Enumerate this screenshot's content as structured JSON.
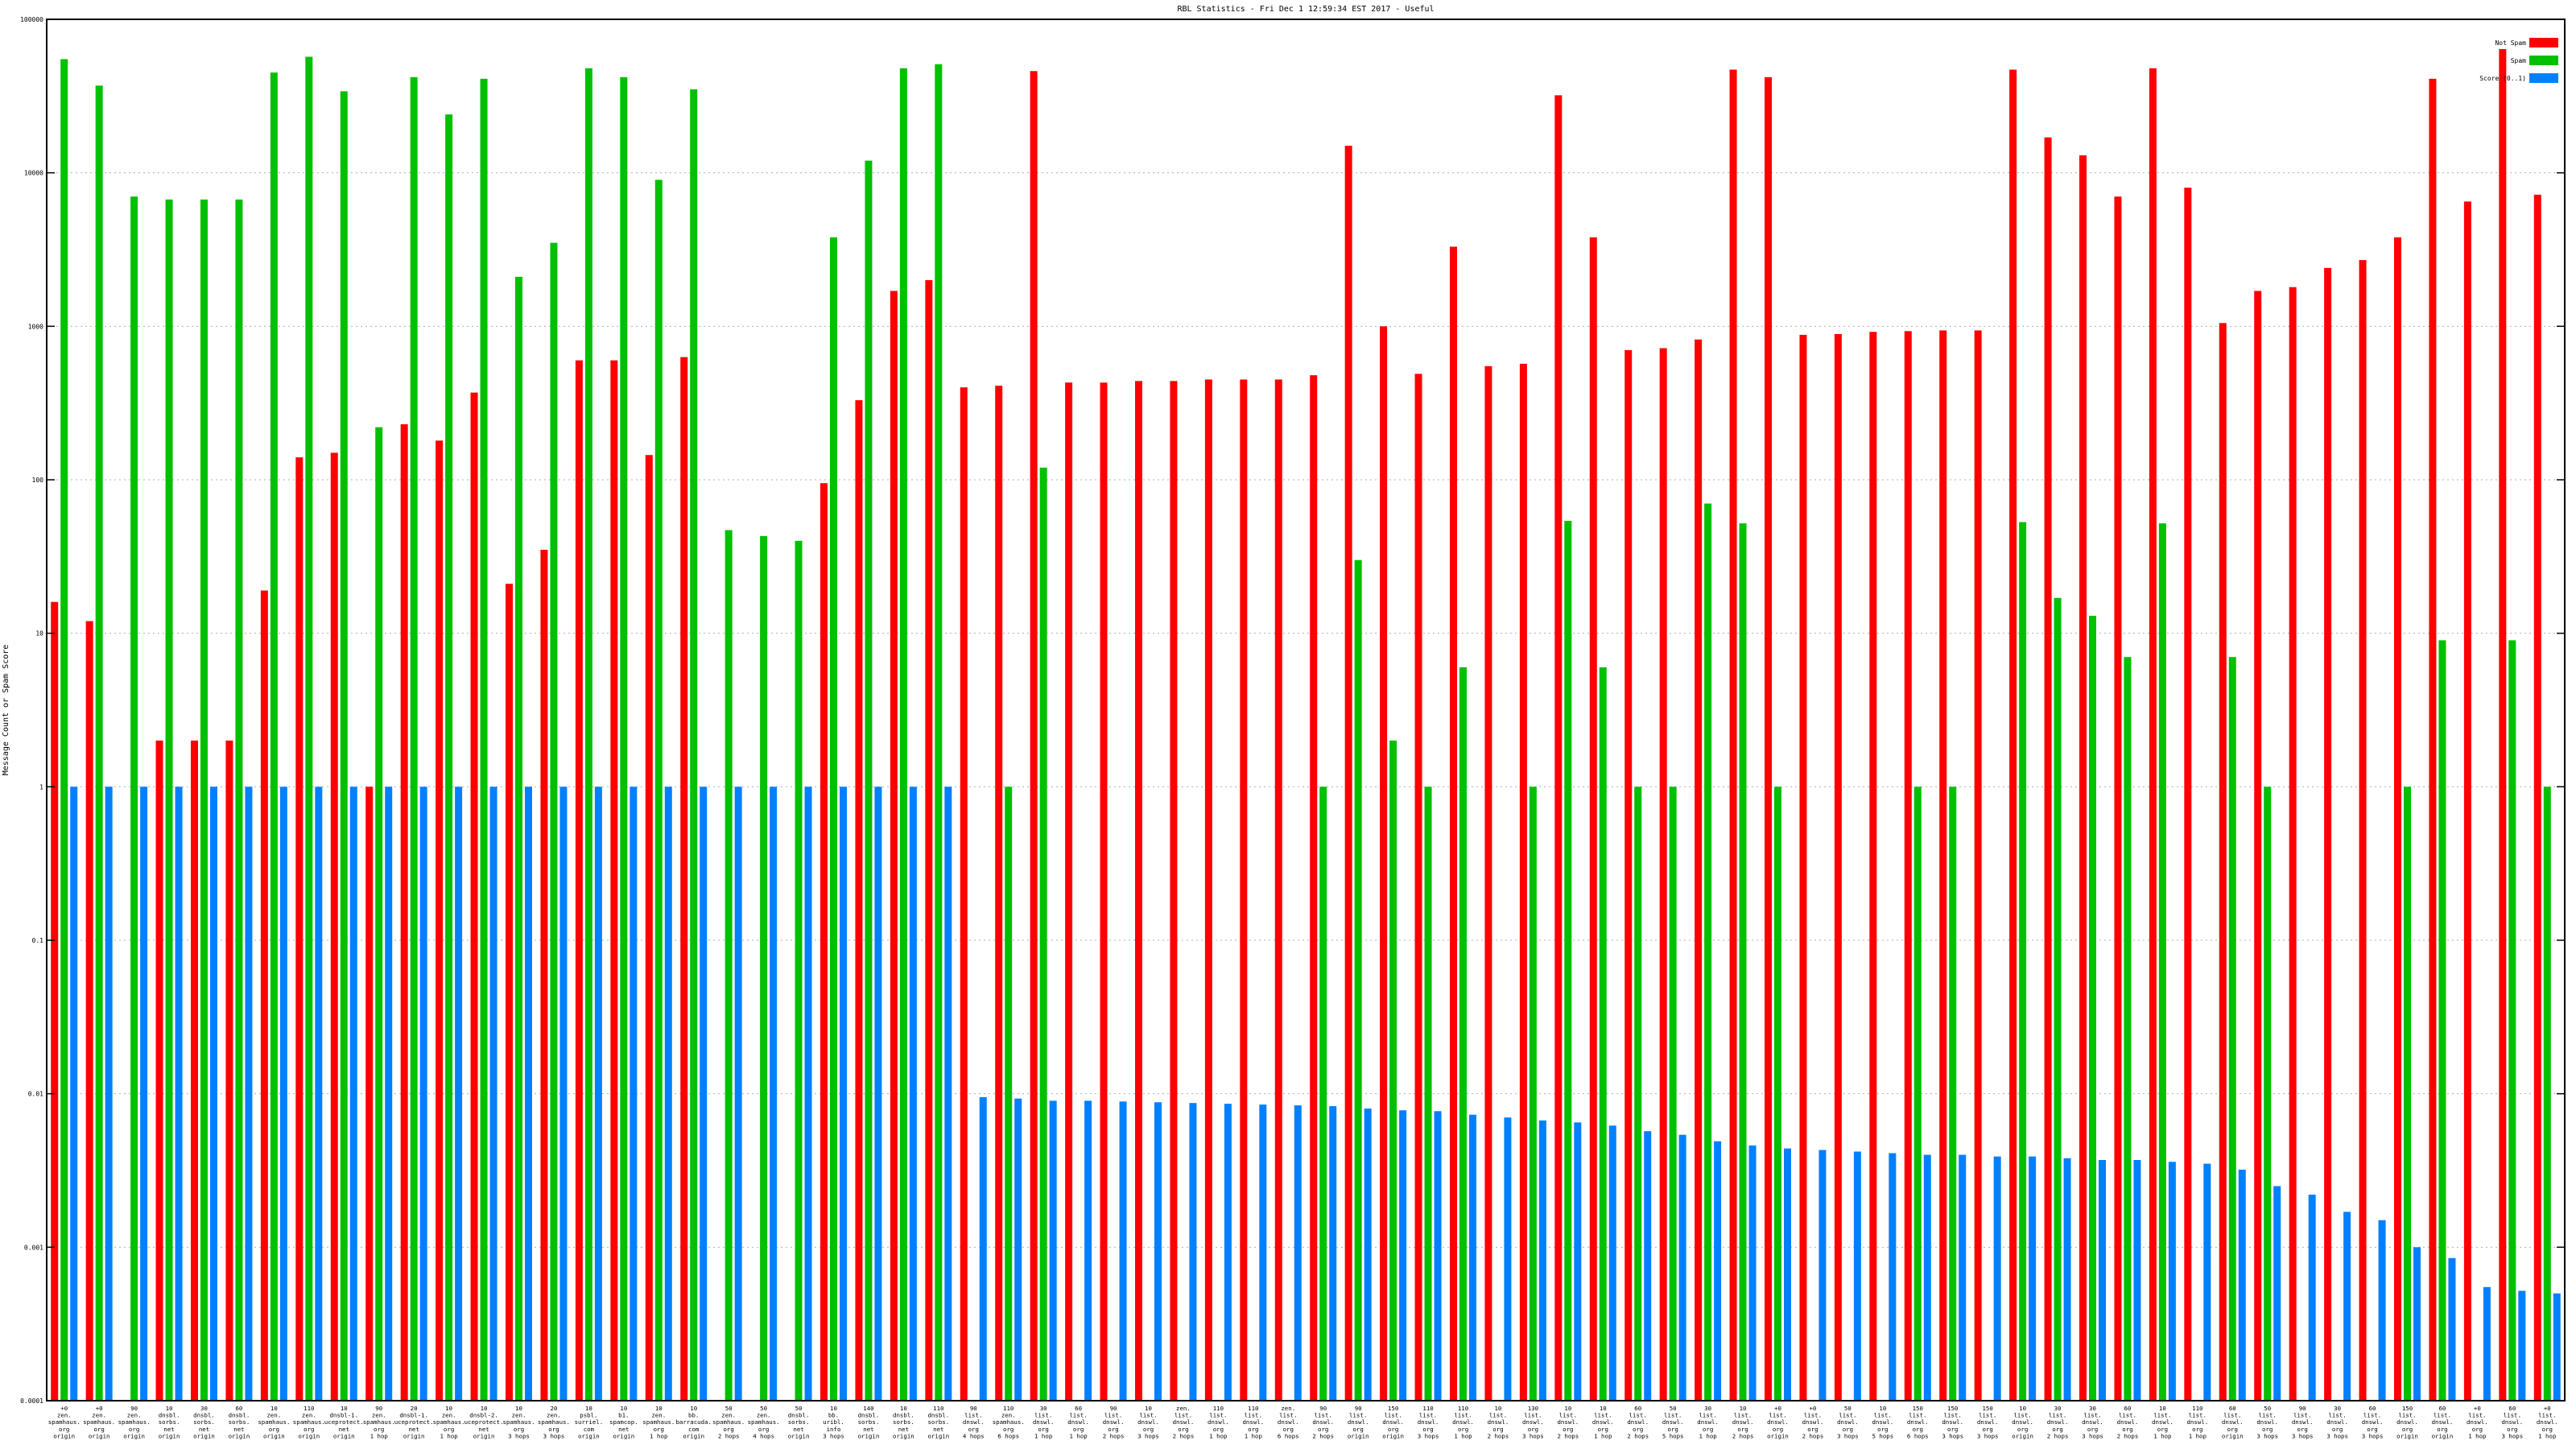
{
  "chart_data": {
    "type": "bar",
    "title": "RBL Statistics - Fri Dec  1 12:59:34 EST 2017 - Useful",
    "ylabel": "Message Count or Spam Score",
    "xlabel": "",
    "yscale": "log",
    "ylim": [
      0.0001,
      100000
    ],
    "ytick_labels": [
      "0.0001",
      "0.001",
      "0.01",
      "0.1",
      "1",
      "10",
      "100",
      "1000",
      "10000",
      "100000"
    ],
    "grid": true,
    "legend_position": "top-right",
    "colors": {
      "not_spam": "#ff0000",
      "spam": "#00c000",
      "score": "#0080ff"
    },
    "series": [
      {
        "name": "Not Spam",
        "color": "#ff0000",
        "values": [
          16,
          12,
          null,
          2,
          2,
          2,
          19,
          140,
          150,
          1,
          230,
          180,
          370,
          21,
          35,
          600,
          600,
          145,
          630,
          null,
          null,
          null,
          95,
          330,
          1700,
          2000,
          400,
          410,
          46000,
          430,
          430,
          440,
          440,
          450,
          450,
          450,
          480,
          15000,
          1000,
          490,
          3300,
          550,
          570,
          32000,
          3800,
          700,
          720,
          820,
          47000,
          42000,
          880,
          890,
          920,
          930,
          940,
          940,
          47000,
          17000,
          13000,
          7000,
          48000,
          8000,
          1050,
          1700,
          1800,
          2400,
          2700,
          3800,
          41000,
          6500,
          64000,
          7200
        ]
      },
      {
        "name": "Spam",
        "color": "#00c000",
        "values": [
          55000,
          37000,
          7000,
          6700,
          6700,
          6700,
          45000,
          57000,
          34000,
          220,
          42000,
          24000,
          41000,
          2100,
          3500,
          48000,
          42000,
          9000,
          35000,
          47,
          43,
          40,
          3800,
          12000,
          48000,
          51000,
          null,
          1,
          120,
          null,
          null,
          null,
          null,
          null,
          null,
          null,
          1,
          30,
          2,
          1,
          6,
          null,
          1,
          54,
          6,
          1,
          1,
          70,
          52,
          1,
          null,
          null,
          null,
          1,
          1,
          null,
          53,
          17,
          13,
          7,
          52,
          null,
          7,
          1,
          null,
          null,
          null,
          1,
          9,
          null,
          9,
          1
        ]
      },
      {
        "name": "Score (0..1)",
        "color": "#0080ff",
        "values": [
          1,
          1,
          1,
          1,
          1,
          1,
          1,
          1,
          1,
          1,
          1,
          1,
          1,
          1,
          1,
          1,
          1,
          1,
          1,
          1,
          1,
          1,
          1,
          1,
          1,
          1,
          0.0095,
          0.0093,
          0.009,
          0.009,
          0.0089,
          0.0088,
          0.0087,
          0.0086,
          0.0085,
          0.0084,
          0.0083,
          0.008,
          0.0078,
          0.0077,
          0.0073,
          0.007,
          0.0067,
          0.0065,
          0.0062,
          0.0057,
          0.0054,
          0.0049,
          0.0046,
          0.0044,
          0.0043,
          0.0042,
          0.0041,
          0.004,
          0.004,
          0.0039,
          0.0039,
          0.0038,
          0.0037,
          0.0037,
          0.0036,
          0.0035,
          0.0032,
          0.0025,
          0.0022,
          0.0017,
          0.0015,
          0.001,
          0.00085,
          0.00055,
          0.00052,
          0.0005
        ]
      }
    ],
    "categories": [
      [
        "+0",
        "zen.",
        "spamhaus.",
        "org",
        "origin"
      ],
      [
        "+0",
        "zen.",
        "spamhaus.",
        "org",
        "origin"
      ],
      [
        "90",
        "zen.",
        "spamhaus.",
        "org",
        "origin"
      ],
      [
        "10",
        "dnsbl.",
        "sorbs.",
        "net",
        "origin"
      ],
      [
        "30",
        "dnsbl.",
        "sorbs.",
        "net",
        "origin"
      ],
      [
        "60",
        "dnsbl.",
        "sorbs.",
        "net",
        "origin"
      ],
      [
        "10",
        "zen.",
        "spamhaus.",
        "org",
        "origin"
      ],
      [
        "110",
        "zen.",
        "spamhaus.",
        "org",
        "origin"
      ],
      [
        "10",
        "dnsbl-1.",
        "uceprotect.",
        "net",
        "origin"
      ],
      [
        "90",
        "zen.",
        "spamhaus.",
        "org",
        "1 hop"
      ],
      [
        "20",
        "dnsbl-1.",
        "uceprotect.",
        "net",
        "origin"
      ],
      [
        "10",
        "zen.",
        "spamhaus.",
        "org",
        "1 hop"
      ],
      [
        "10",
        "dnsbl-2.",
        "uceprotect.",
        "net",
        "origin"
      ],
      [
        "10",
        "zen.",
        "spamhaus.",
        "org",
        "3 hops"
      ],
      [
        "20",
        "zen.",
        "spamhaus.",
        "org",
        "3 hops"
      ],
      [
        "10",
        "psbl.",
        "surriel.",
        "com",
        "origin"
      ],
      [
        "10",
        "b1.",
        "spamcop.",
        "net",
        "origin"
      ],
      [
        "10",
        "zen.",
        "spamhaus.",
        "org",
        "1 hop"
      ],
      [
        "10",
        "bb.",
        "barracuda.",
        "com",
        "origin"
      ],
      [
        "50",
        "zen.",
        "spamhaus.",
        "org",
        "2 hops"
      ],
      [
        "50",
        "zen.",
        "spamhaus.",
        "org",
        "4 hops"
      ],
      [
        "50",
        "dnsbl.",
        "sorbs.",
        "net",
        "origin"
      ],
      [
        "10",
        "bb.",
        "uribl.",
        "info",
        "3 hops"
      ],
      [
        "140",
        "dnsbl.",
        "sorbs.",
        "net",
        "origin"
      ],
      [
        "10",
        "dnsbl.",
        "sorbs.",
        "net",
        "origin"
      ],
      [
        "110",
        "dnsbl.",
        "sorbs.",
        "net",
        "origin"
      ],
      [
        "90",
        "list.",
        "dnswl.",
        "org",
        "4 hops"
      ],
      [
        "110",
        "zen.",
        "spamhaus.",
        "org",
        "6 hops"
      ],
      [
        "30",
        "list.",
        "dnswl.",
        "org",
        "1 hop"
      ],
      [
        "60",
        "list.",
        "dnswl.",
        "org",
        "1 hop"
      ],
      [
        "90",
        "list.",
        "dnswl.",
        "org",
        "2 hops"
      ],
      [
        "10",
        "list.",
        "dnswl.",
        "org",
        "3 hops"
      ],
      [
        "zen.",
        "list.",
        "dnswl.",
        "org",
        "2 hops"
      ],
      [
        "110",
        "list.",
        "dnswl.",
        "org",
        "1 hop"
      ],
      [
        "110",
        "list.",
        "dnswl.",
        "org",
        "1 hop"
      ],
      [
        "zen.",
        "list.",
        "dnswl.",
        "org",
        "6 hops"
      ],
      [
        "90",
        "list.",
        "dnswl.",
        "org",
        "2 hops"
      ],
      [
        "90",
        "list.",
        "dnswl.",
        "org",
        "origin"
      ],
      [
        "150",
        "list.",
        "dnswl.",
        "org",
        "origin"
      ],
      [
        "110",
        "list.",
        "dnswl.",
        "org",
        "3 hops"
      ],
      [
        "110",
        "list.",
        "dnswl.",
        "org",
        "1 hop"
      ],
      [
        "10",
        "list.",
        "dnswl.",
        "org",
        "2 hops"
      ],
      [
        "130",
        "list.",
        "dnswl.",
        "org",
        "3 hops"
      ],
      [
        "10",
        "list.",
        "dnswl.",
        "org",
        "2 hops"
      ],
      [
        "10",
        "list.",
        "dnswl.",
        "org",
        "1 hop"
      ],
      [
        "60",
        "list.",
        "dnswl.",
        "org",
        "2 hops"
      ],
      [
        "50",
        "list.",
        "dnswl.",
        "org",
        "5 hops"
      ],
      [
        "30",
        "list.",
        "dnswl.",
        "org",
        "1 hop"
      ],
      [
        "10",
        "list.",
        "dnswl.",
        "org",
        "2 hops"
      ],
      [
        "+0",
        "list.",
        "dnswl.",
        "org",
        "origin"
      ],
      [
        "+0",
        "list.",
        "dnswl.",
        "org",
        "2 hops"
      ],
      [
        "50",
        "list.",
        "dnswl.",
        "org",
        "3 hops"
      ],
      [
        "10",
        "list.",
        "dnswl.",
        "org",
        "5 hops"
      ],
      [
        "150",
        "list.",
        "dnswl.",
        "org",
        "6 hops"
      ],
      [
        "150",
        "list.",
        "dnswl.",
        "org",
        "3 hops"
      ],
      [
        "150",
        "list.",
        "dnswl.",
        "org",
        "3 hops"
      ],
      [
        "10",
        "list.",
        "dnswl.",
        "org",
        "origin"
      ],
      [
        "30",
        "list.",
        "dnswl.",
        "org",
        "2 hops"
      ],
      [
        "30",
        "list.",
        "dnswl.",
        "org",
        "3 hops"
      ],
      [
        "60",
        "list.",
        "dnswl.",
        "org",
        "2 hops"
      ],
      [
        "10",
        "list.",
        "dnswl.",
        "org",
        "1 hop"
      ],
      [
        "110",
        "list.",
        "dnswl.",
        "org",
        "1 hop"
      ],
      [
        "60",
        "list.",
        "dnswl.",
        "org",
        "origin"
      ],
      [
        "50",
        "list.",
        "dnswl.",
        "org",
        "3 hops"
      ],
      [
        "90",
        "list.",
        "dnswl.",
        "org",
        "3 hops"
      ],
      [
        "30",
        "list.",
        "dnswl.",
        "org",
        "3 hops"
      ],
      [
        "60",
        "list.",
        "dnswl.",
        "org",
        "3 hops"
      ],
      [
        "150",
        "list.",
        "dnswl.",
        "org",
        "origin"
      ],
      [
        "60",
        "list.",
        "dnswl.",
        "org",
        "origin"
      ],
      [
        "+0",
        "list.",
        "dnswl.",
        "org",
        "1 hop"
      ],
      [
        "60",
        "list.",
        "dnswl.",
        "org",
        "3 hops"
      ],
      [
        "+0",
        "list.",
        "dnswl.",
        "org",
        "1 hop"
      ]
    ]
  }
}
